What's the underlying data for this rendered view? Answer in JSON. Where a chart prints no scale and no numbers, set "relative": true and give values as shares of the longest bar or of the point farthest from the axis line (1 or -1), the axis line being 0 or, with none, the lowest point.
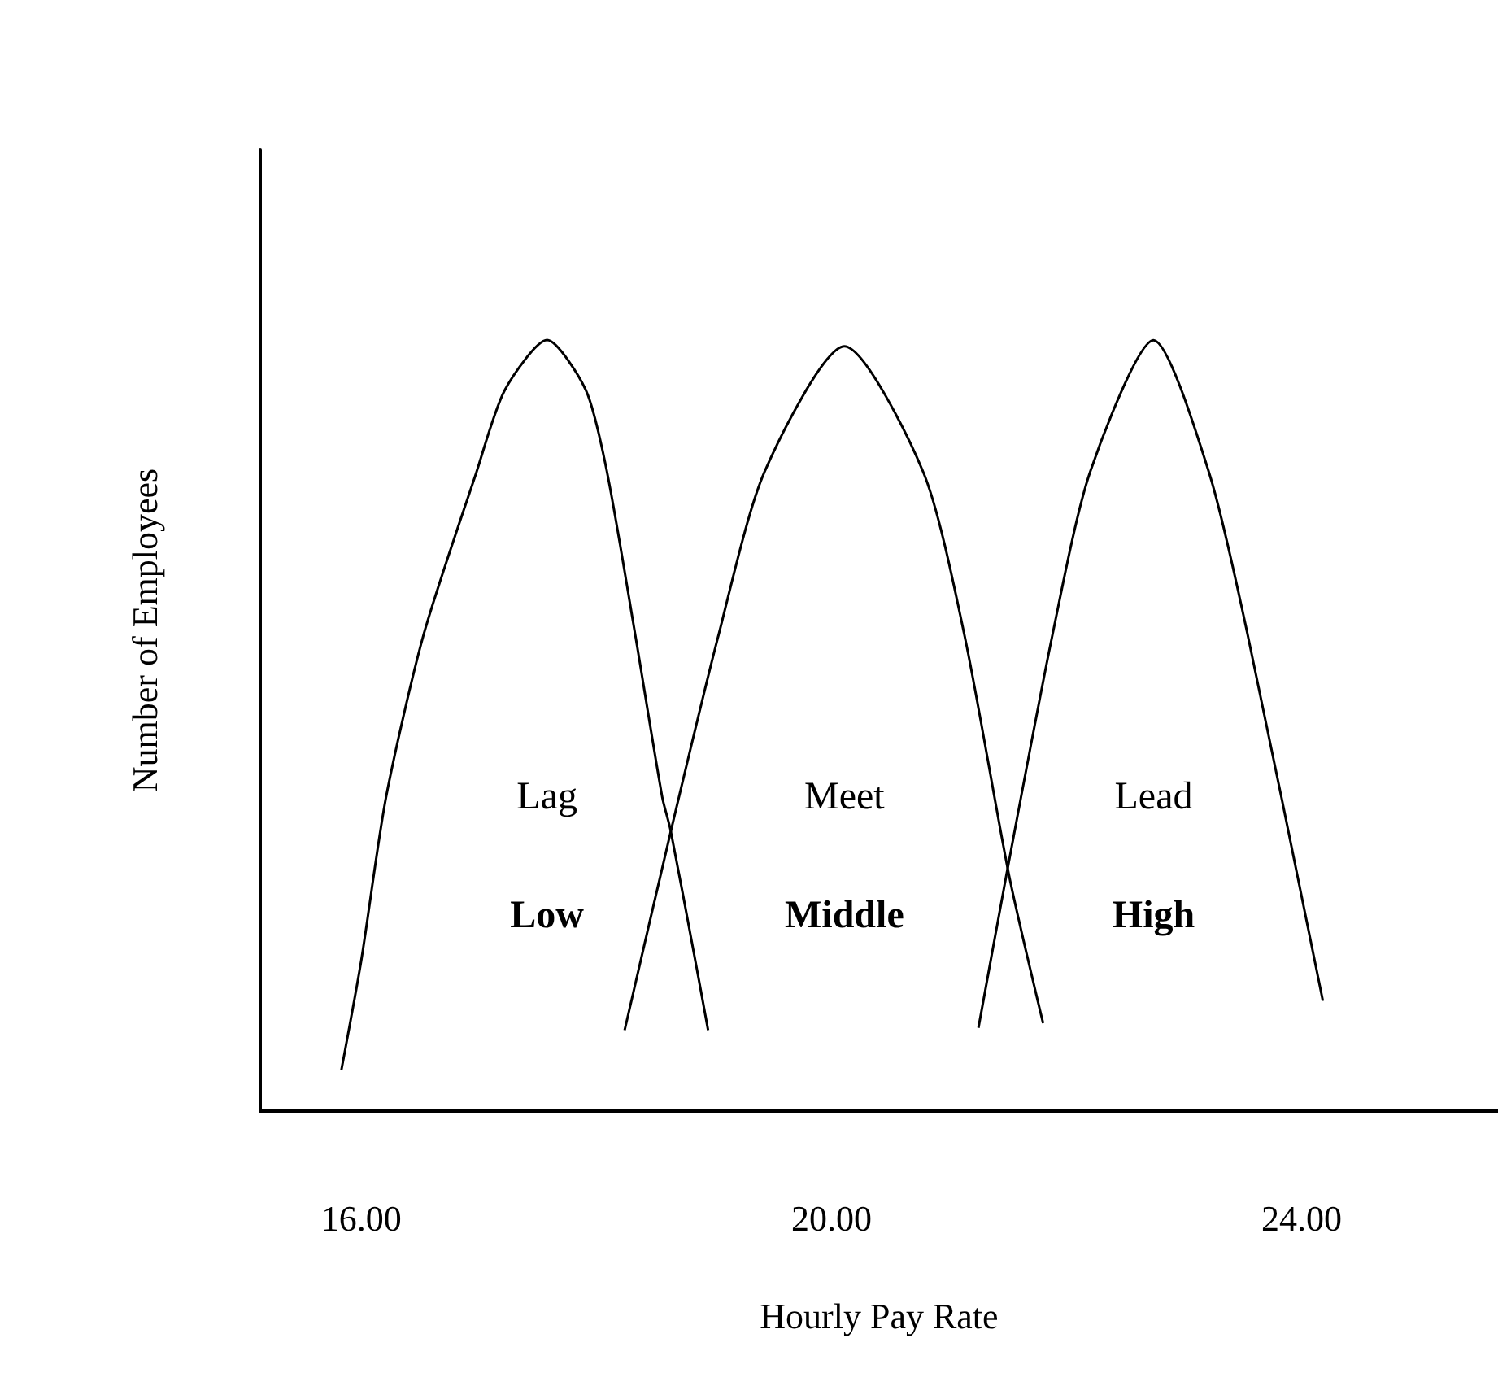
{
  "chart_data": {
    "type": "line",
    "xlabel": "Hourly Pay Rate",
    "ylabel": "Number of Employees",
    "relative": true,
    "grid": false,
    "marker": "none",
    "line_style": "solid",
    "xlim": [
      15.14,
      25.67
    ],
    "xticks": [
      {
        "value": 16,
        "label": "16.00"
      },
      {
        "value": 20,
        "label": "20.00"
      },
      {
        "value": 24,
        "label": "24.00"
      }
    ],
    "series": [
      {
        "color": "#000000",
        "x": [
          15.83,
          16.0,
          16.21,
          16.53,
          16.98,
          17.22,
          17.58,
          17.91,
          18.09,
          18.33,
          18.56,
          18.63,
          18.84,
          18.95
        ],
        "values": [
          0.053,
          0.196,
          0.407,
          0.618,
          0.829,
          0.935,
          1,
          0.935,
          0.829,
          0.618,
          0.407,
          0.365,
          0.196,
          0.105
        ]
      },
      {
        "color": "#000000",
        "x": [
          18.24,
          18.63,
          19.04,
          19.43,
          20.11,
          20.78,
          21.13,
          21.51,
          21.8
        ],
        "values": [
          0.105,
          0.361,
          0.618,
          0.829,
          0.992,
          0.829,
          0.618,
          0.306,
          0.114
        ]
      },
      {
        "color": "#000000",
        "x": [
          21.25,
          21.49,
          21.88,
          22.2,
          22.74,
          23.21,
          23.54,
          24.18
        ],
        "values": [
          0.108,
          0.308,
          0.618,
          0.829,
          1,
          0.829,
          0.618,
          0.143
        ]
      }
    ],
    "annotations": [
      "Lag",
      "Low",
      "Meet",
      "Middle",
      "Lead",
      "High"
    ]
  }
}
